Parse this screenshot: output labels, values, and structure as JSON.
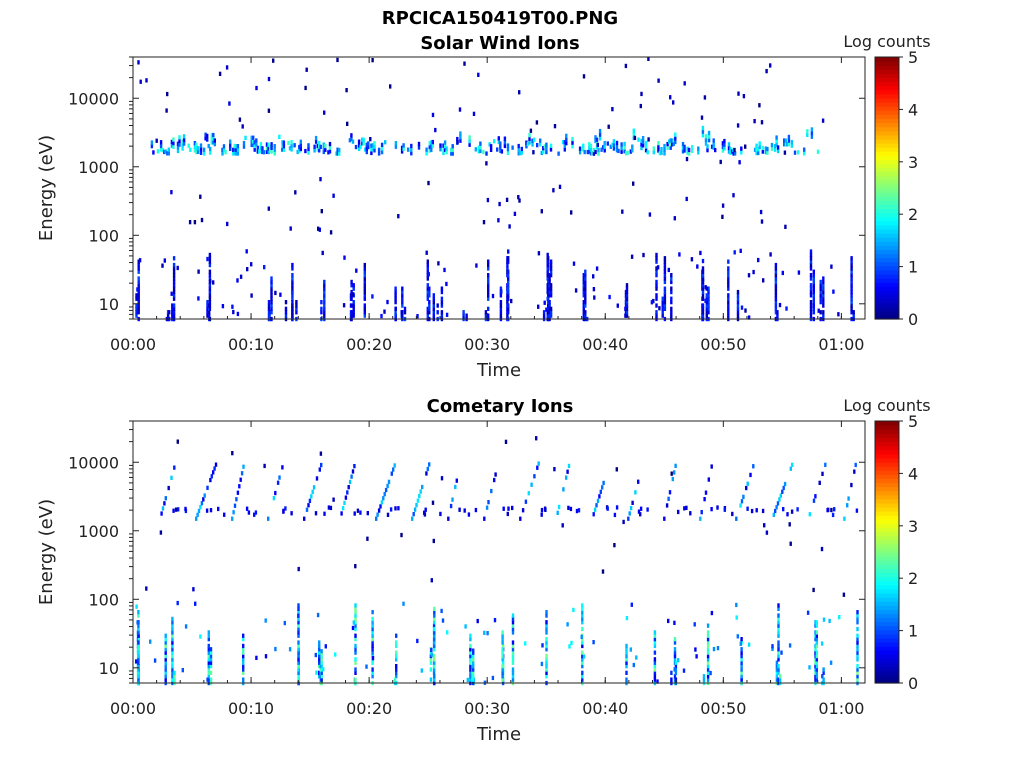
{
  "figure": {
    "title": "RPCICA150419T00.PNG"
  },
  "colors": {
    "colormap": [
      "#00007f",
      "#0000ff",
      "#007fff",
      "#00ffff",
      "#7fff7f",
      "#ffff00",
      "#ff7f00",
      "#ff0000",
      "#7f0000"
    ],
    "axis": "#222222",
    "background": "#ffffff"
  },
  "chart_data": [
    {
      "type": "heatmap",
      "title": "Solar Wind Ions",
      "xlabel": "Time",
      "ylabel": "Energy (eV)",
      "x_unit": "minutes after 00:00",
      "xlim": [
        0,
        62
      ],
      "xtick_labels": [
        "00:00",
        "00:10",
        "00:20",
        "00:30",
        "00:40",
        "00:50",
        "01:00"
      ],
      "xticks": [
        0,
        10,
        20,
        30,
        40,
        50,
        60
      ],
      "y_scale": "log",
      "ylim": [
        6,
        40000
      ],
      "yticks": [
        10,
        100,
        1000,
        10000
      ],
      "ytick_labels": [
        "10",
        "100",
        "1000",
        "10000"
      ],
      "colorbar": {
        "label": "Log counts",
        "range": [
          0,
          5
        ],
        "ticks": [
          "0",
          "1",
          "2",
          "3",
          "4",
          "5"
        ]
      },
      "description_of_features": {
        "solar_wind_band_energy_eV": [
          1000,
          3000
        ],
        "solar_wind_band_log_counts_range": [
          0.5,
          2.2
        ],
        "low_energy_spikes_energy_eV": [
          6,
          60
        ],
        "low_energy_spikes_log_counts_range": [
          0.2,
          1.0
        ]
      },
      "burst_times_min": [
        0.3,
        2.8,
        3.2,
        6.2,
        11.5,
        12.8,
        13.4,
        16.0,
        18.4,
        19.5,
        22.1,
        22.7,
        25.0,
        25.8,
        28.0,
        29.8,
        31.2,
        31.7,
        34.8,
        35.3,
        38.0,
        41.6,
        44.1,
        44.7,
        45.4,
        48.1,
        48.5,
        50.4,
        51.2,
        54.4,
        57.4,
        58.2,
        60.7
      ]
    },
    {
      "type": "heatmap",
      "title": "Cometary Ions",
      "xlabel": "Time",
      "ylabel": "Energy (eV)",
      "x_unit": "minutes after 00:00",
      "xlim": [
        0,
        62
      ],
      "xtick_labels": [
        "00:00",
        "00:10",
        "00:20",
        "00:30",
        "00:40",
        "00:50",
        "01:00"
      ],
      "xticks": [
        0,
        10,
        20,
        30,
        40,
        50,
        60
      ],
      "y_scale": "log",
      "ylim": [
        6,
        40000
      ],
      "yticks": [
        10,
        100,
        1000,
        10000
      ],
      "ytick_labels": [
        "10",
        "100",
        "1000",
        "10000"
      ],
      "colorbar": {
        "label": "Log counts",
        "range": [
          0,
          5
        ],
        "ticks": [
          "0",
          "1",
          "2",
          "3",
          "4",
          "5"
        ]
      },
      "description_of_features": {
        "periodic_streaks_energy_eV": [
          1500,
          10000
        ],
        "periodic_streaks_log_counts_range": [
          0.3,
          1.8
        ],
        "low_energy_band_energy_eV": [
          6,
          90
        ],
        "low_energy_band_log_counts_range": [
          0.5,
          2.5
        ]
      },
      "burst_times_min": [
        0.2,
        2.6,
        3.2,
        6.3,
        9.1,
        13.8,
        15.6,
        18.6,
        20.3,
        22.1,
        25.2,
        28.5,
        31.1,
        32.1,
        35.0,
        38.1,
        41.6,
        44.0,
        45.6,
        48.4,
        51.3,
        54.4,
        57.6,
        58.3,
        61.2
      ]
    }
  ]
}
